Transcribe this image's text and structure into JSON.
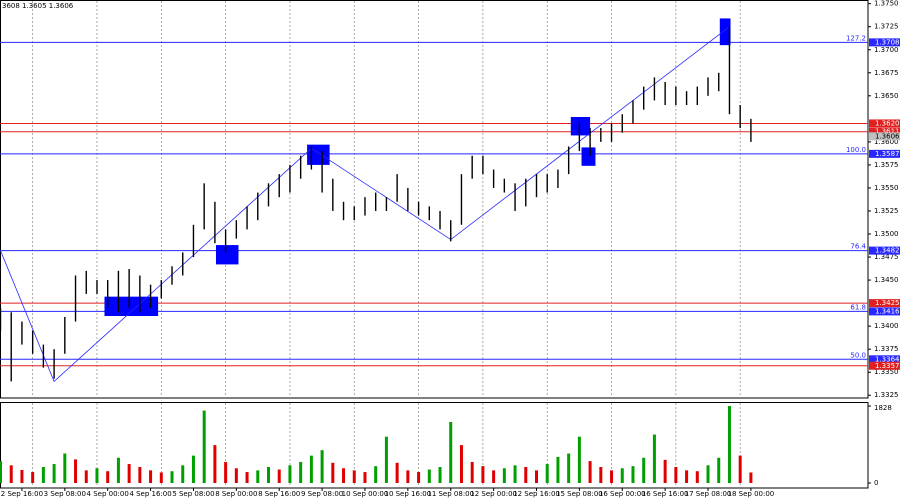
{
  "chart_data": {
    "type": "bars",
    "header": "3608 1.3605 1.3606",
    "categories": [
      null,
      null,
      "2 Sep 16:00",
      null,
      null,
      null,
      "3 Sep 08:00",
      null,
      null,
      null,
      "4 Sep 00:00",
      null,
      null,
      null,
      "4 Sep 16:00",
      null,
      null,
      null,
      "5 Sep 08:00",
      null,
      null,
      null,
      "8 Sep 00:00",
      null,
      null,
      null,
      "8 Sep 16:00",
      null,
      null,
      null,
      "9 Sep 08:00",
      null,
      null,
      null,
      "10 Sep 00:00",
      null,
      null,
      null,
      "10 Sep 16:00",
      null,
      null,
      null,
      "11 Sep 08:00",
      null,
      null,
      null,
      "12 Sep 00:00",
      null,
      null,
      null,
      "12 Sep 16:00",
      null,
      null,
      null,
      "15 Sep 08:00",
      null,
      null,
      null,
      "16 Sep 00:00",
      null,
      null,
      null,
      "16 Sep 16:00",
      null,
      null,
      null,
      "17 Sep 08:00",
      null,
      null,
      null,
      "18 Sep 00:00"
    ],
    "high": [
      1.342,
      1.3415,
      1.3405,
      1.3395,
      1.338,
      1.3375,
      1.341,
      1.3455,
      1.346,
      1.345,
      1.345,
      1.346,
      1.3462,
      1.3455,
      1.3445,
      1.345,
      1.3465,
      1.348,
      1.351,
      1.3555,
      1.3535,
      1.3505,
      1.3515,
      1.353,
      1.3545,
      1.3555,
      1.3565,
      1.3575,
      1.3585,
      1.3595,
      1.359,
      1.356,
      1.3535,
      1.353,
      1.354,
      1.3545,
      1.354,
      1.3565,
      1.355,
      1.3535,
      1.353,
      1.3525,
      1.3515,
      1.3565,
      1.3585,
      1.3585,
      1.357,
      1.356,
      1.3555,
      1.356,
      1.3565,
      1.3565,
      1.357,
      1.3595,
      1.362,
      1.3615,
      1.3615,
      1.362,
      1.363,
      1.3645,
      1.366,
      1.367,
      1.3665,
      1.366,
      1.3655,
      1.366,
      1.367,
      1.3675,
      1.3725,
      1.364,
      1.3625
    ],
    "low": [
      1.3395,
      1.334,
      1.338,
      1.337,
      1.3355,
      1.3343,
      1.337,
      1.3405,
      1.3435,
      1.3435,
      1.342,
      1.3415,
      1.342,
      1.3415,
      1.342,
      1.343,
      1.3445,
      1.3455,
      1.3475,
      1.3505,
      1.349,
      1.348,
      1.3495,
      1.3505,
      1.3515,
      1.353,
      1.354,
      1.3545,
      1.356,
      1.357,
      1.3545,
      1.3525,
      1.3515,
      1.3515,
      1.352,
      1.3525,
      1.3525,
      1.3535,
      1.3525,
      1.352,
      1.3515,
      1.3505,
      1.3492,
      1.351,
      1.356,
      1.3565,
      1.355,
      1.3545,
      1.3525,
      1.353,
      1.354,
      1.3545,
      1.355,
      1.3565,
      1.359,
      1.3585,
      1.36,
      1.36,
      1.361,
      1.362,
      1.3635,
      1.3645,
      1.364,
      1.364,
      1.364,
      1.364,
      1.365,
      1.3655,
      1.363,
      1.3615,
      1.36
    ],
    "bar_color": "#000000",
    "volume": [
      520,
      420,
      310,
      260,
      380,
      450,
      700,
      560,
      300,
      350,
      280,
      600,
      450,
      380,
      300,
      250,
      280,
      420,
      650,
      1720,
      900,
      500,
      350,
      260,
      300,
      380,
      320,
      420,
      500,
      650,
      780,
      480,
      350,
      300,
      260,
      400,
      1100,
      480,
      300,
      260,
      320,
      380,
      1450,
      900,
      500,
      400,
      300,
      350,
      420,
      380,
      300,
      450,
      620,
      700,
      1100,
      520,
      380,
      300,
      350,
      400,
      600,
      1150,
      550,
      380,
      300,
      280,
      420,
      600,
      1828,
      650,
      250
    ],
    "volume_up_color": "#00a000",
    "volume_down_color": "#e00000",
    "ylim": [
      1.3322,
      1.3754
    ],
    "yticks": [
      1.3325,
      {
        "value": 1.335,
        "label": "1.3350"
      },
      1.3375,
      {
        "value": 1.34,
        "label": "1.3400"
      },
      {
        "value": 1.345,
        "label": "1.3450"
      },
      1.3475,
      {
        "value": 1.35,
        "label": "1.3500"
      },
      1.3525,
      {
        "value": 1.355,
        "label": "1.3550"
      },
      1.3575,
      {
        "value": 1.36,
        "label": "1.3600"
      },
      {
        "value": 1.365,
        "label": "1.3650"
      },
      1.3675,
      {
        "value": 1.37,
        "label": "1.3700"
      },
      1.3725,
      {
        "value": 1.375,
        "label": "1.3750"
      }
    ],
    "vylim": [
      0,
      1900
    ],
    "vyticks": [
      0,
      1828
    ],
    "levels": [
      {
        "value": 1.3708,
        "color": "#2828ff",
        "fib": "127.2"
      },
      {
        "value": 1.362,
        "label": "1.3620",
        "color": "#e02020"
      },
      {
        "value": 1.3611,
        "color": "#e02020"
      },
      {
        "value": 1.3587,
        "color": "#2828ff",
        "fib": "100.0"
      },
      {
        "value": 1.3482,
        "color": "#2828ff",
        "fib": "76.4"
      },
      {
        "value": 1.3425,
        "color": "#e02020"
      },
      {
        "value": 1.3416,
        "color": "#2828ff",
        "fib": "61.8"
      },
      {
        "value": 1.3364,
        "color": "#2828ff",
        "fib": "50.0"
      },
      {
        "value": 1.3357,
        "color": "#e02020"
      }
    ],
    "current_price": {
      "value": 1.3606,
      "color": "#c0c0c0"
    },
    "zigzag": {
      "x": [
        0,
        5,
        29,
        42,
        68
      ],
      "values": [
        1.3482,
        1.334,
        1.3593,
        1.3494,
        1.3725
      ],
      "color": "#2828ff"
    },
    "zones": [
      {
        "x": [
          9.7,
          14.7
        ],
        "y": [
          1.3432,
          1.3411
        ]
      },
      {
        "x": [
          20.1,
          22.2
        ],
        "y": [
          1.3488,
          1.3467
        ]
      },
      {
        "x": [
          28.6,
          30.7
        ],
        "y": [
          1.3597,
          1.3575
        ]
      },
      {
        "x": [
          53.2,
          55
        ],
        "y": [
          1.3627,
          1.3607
        ]
      },
      {
        "x": [
          54.2,
          55.5
        ],
        "y": [
          1.3594,
          1.3574
        ]
      },
      {
        "x": [
          67.1,
          68.1
        ],
        "y": [
          1.3734,
          1.3705
        ]
      }
    ],
    "zone_color": "#0000ff"
  }
}
